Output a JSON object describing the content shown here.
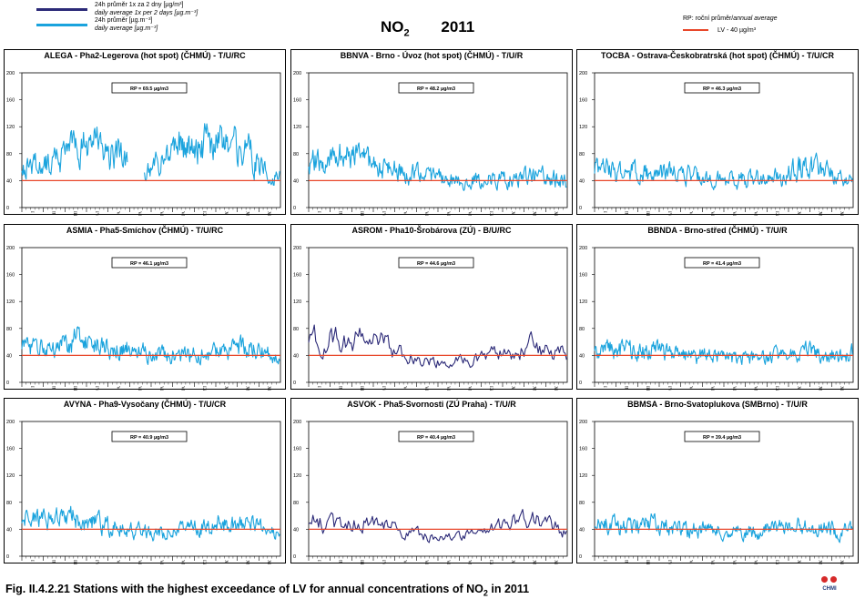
{
  "legend": {
    "series1_line1": "24h průměr 1x za 2 dny [µg/m³]",
    "series1_line2": "daily average 1x per 2 days [µg.m⁻³]",
    "series2_line1": "24h průměr [µg.m⁻³]",
    "series2_line2": "daily average [µg.m⁻³]",
    "rp_label_cz": "RP: roční průměr/",
    "rp_label_en": "annual average",
    "lv_label": "LV - 40 µg/m³"
  },
  "title": {
    "pollutant": "NO",
    "subscript": "2",
    "year": "2011"
  },
  "caption": {
    "prefix": "Fig. II.4.2.21  Stations with the highest exceedance of LV for annual concentrations of NO",
    "subscript": "2",
    "suffix": " in 2011"
  },
  "logo": {
    "text": "CHMI"
  },
  "colors": {
    "daily": "#1aa3dd",
    "alternate": "#2c2a78",
    "limit": "#e8472a"
  },
  "chart_data": [
    {
      "type": "line",
      "title": "ALEGA - Pha2-Legerova (hot spot) (ČHMÚ) - T/U/RC",
      "annual_average_label": "RP = 69.5 µg/m3",
      "limit_value": 40,
      "ylim": [
        0,
        200
      ],
      "yticks": [
        0,
        40,
        80,
        120,
        160,
        200
      ],
      "x_months": [
        "I",
        "II",
        "III",
        "IV",
        "V",
        "VI",
        "VII",
        "VIII",
        "IX",
        "X",
        "XI",
        "XII"
      ],
      "series": "daily",
      "monthly_profile": [
        62,
        72,
        88,
        92,
        76,
        42,
        74,
        92,
        94,
        96,
        86,
        44
      ],
      "gaps": [
        [
          150,
          172
        ]
      ]
    },
    {
      "type": "line",
      "title": "BBNVA - Brno - Úvoz (hot spot) (ČHMÚ) - T/U/R",
      "annual_average_label": "RP = 48.2 µg/m3",
      "limit_value": 40,
      "ylim": [
        0,
        200
      ],
      "yticks": [
        0,
        40,
        80,
        120,
        160,
        200
      ],
      "x_months": [
        "I",
        "II",
        "III",
        "IV",
        "V",
        "VI",
        "VII",
        "VIII",
        "IX",
        "X",
        "XI",
        "XII"
      ],
      "series": "daily",
      "monthly_profile": [
        68,
        74,
        70,
        58,
        50,
        44,
        40,
        40,
        42,
        44,
        46,
        42
      ],
      "gaps": []
    },
    {
      "type": "line",
      "title": "TOCBA - Ostrava-Českobratrská (hot spot) (ČHMÚ) - T/U/CR",
      "annual_average_label": "RP = 46.3 µg/m3",
      "limit_value": 40,
      "ylim": [
        0,
        200
      ],
      "yticks": [
        0,
        40,
        80,
        120,
        160,
        200
      ],
      "x_months": [
        "I",
        "II",
        "III",
        "IV",
        "V",
        "VI",
        "VII",
        "VIII",
        "IX",
        "X",
        "XI",
        "XII"
      ],
      "series": "daily",
      "monthly_profile": [
        56,
        54,
        52,
        50,
        48,
        44,
        42,
        42,
        44,
        60,
        56,
        40
      ],
      "gaps": []
    },
    {
      "type": "line",
      "title": "ASMIA - Pha5-Smíchov (ČHMÚ) - T/U/RC",
      "annual_average_label": "RP = 46.1 µg/m3",
      "limit_value": 40,
      "ylim": [
        0,
        200
      ],
      "yticks": [
        0,
        40,
        80,
        120,
        160,
        200
      ],
      "x_months": [
        "I",
        "II",
        "III",
        "IV",
        "V",
        "VI",
        "VII",
        "VIII",
        "IX",
        "X",
        "XI",
        "XII"
      ],
      "series": "daily",
      "monthly_profile": [
        54,
        48,
        64,
        58,
        54,
        44,
        40,
        40,
        42,
        48,
        52,
        44
      ],
      "gaps": []
    },
    {
      "type": "line",
      "title": "ASROM - Pha10-Šrobárova (ZÚ) - B/U/RC",
      "annual_average_label": "RP = 44.6 µg/m3",
      "limit_value": 40,
      "ylim": [
        0,
        200
      ],
      "yticks": [
        0,
        40,
        80,
        120,
        160,
        200
      ],
      "x_months": [
        "I",
        "II",
        "III",
        "IV",
        "V",
        "VI",
        "VII",
        "VIII",
        "IX",
        "X",
        "XI",
        "XII"
      ],
      "series": "alternate",
      "monthly_profile": [
        64,
        62,
        64,
        58,
        40,
        32,
        30,
        32,
        40,
        48,
        56,
        44
      ],
      "gaps": []
    },
    {
      "type": "line",
      "title": "BBNDA - Brno-střed (ČHMÚ) - T/U/R",
      "annual_average_label": "RP = 41.4 µg/m3",
      "limit_value": 40,
      "ylim": [
        0,
        200
      ],
      "yticks": [
        0,
        40,
        80,
        120,
        160,
        200
      ],
      "x_months": [
        "I",
        "II",
        "III",
        "IV",
        "V",
        "VI",
        "VII",
        "VIII",
        "IX",
        "X",
        "XI",
        "XII"
      ],
      "series": "daily",
      "monthly_profile": [
        50,
        48,
        48,
        44,
        40,
        38,
        36,
        36,
        38,
        44,
        46,
        42
      ],
      "gaps": []
    },
    {
      "type": "line",
      "title": "AVYNA - Pha9-Vysočany (ČHMÚ) - T/U/CR",
      "annual_average_label": "RP = 40.9 µg/m3",
      "limit_value": 40,
      "ylim": [
        0,
        200
      ],
      "yticks": [
        0,
        40,
        80,
        120,
        160,
        200
      ],
      "x_months": [
        "I",
        "II",
        "III",
        "IV",
        "V",
        "VI",
        "VII",
        "VIII",
        "IX",
        "X",
        "XI",
        "XII"
      ],
      "series": "daily",
      "monthly_profile": [
        52,
        56,
        58,
        50,
        42,
        36,
        36,
        38,
        44,
        48,
        46,
        36
      ],
      "gaps": []
    },
    {
      "type": "line",
      "title": "ASVOK - Pha5-Svornosti (ZÚ Praha) - T/U/R",
      "annual_average_label": "RP = 40.4 µg/m3",
      "limit_value": 40,
      "ylim": [
        0,
        200
      ],
      "yticks": [
        0,
        40,
        80,
        120,
        160,
        200
      ],
      "x_months": [
        "I",
        "II",
        "III",
        "IV",
        "V",
        "VI",
        "VII",
        "VIII",
        "IX",
        "X",
        "XI",
        "XII"
      ],
      "series": "alternate",
      "monthly_profile": [
        50,
        44,
        50,
        46,
        36,
        28,
        26,
        30,
        42,
        52,
        54,
        42
      ],
      "gaps": []
    },
    {
      "type": "line",
      "title": "BBMSA - Brno-Svatoplukova (SMBrno) - T/U/R",
      "annual_average_label": "RP = 39.4 µg/m3",
      "limit_value": 40,
      "ylim": [
        0,
        200
      ],
      "yticks": [
        0,
        40,
        80,
        120,
        160,
        200
      ],
      "x_months": [
        "I",
        "II",
        "III",
        "IV",
        "V",
        "VI",
        "VII",
        "VIII",
        "IX",
        "X",
        "XI",
        "XII"
      ],
      "series": "daily",
      "monthly_profile": [
        46,
        44,
        48,
        42,
        40,
        38,
        36,
        38,
        40,
        44,
        44,
        38
      ],
      "gaps": []
    }
  ]
}
